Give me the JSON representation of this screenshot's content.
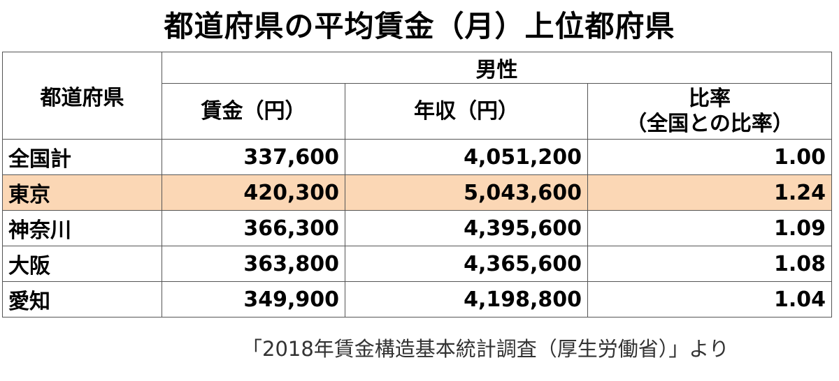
{
  "title": "都道府県の平均賃金（月）上位都府県",
  "table": {
    "header_pref": "都道府県",
    "header_group": "男性",
    "header_wage": "賃金（円）",
    "header_income": "年収（円）",
    "header_ratio_line1": "比率",
    "header_ratio_line2": "（全国との比率）",
    "highlight_color": "#fbd7b5",
    "rows": [
      {
        "name": "全国計",
        "wage": "337,600",
        "income": "4,051,200",
        "ratio": "1.00"
      },
      {
        "name": "東京",
        "wage": "420,300",
        "income": "5,043,600",
        "ratio": "1.24"
      },
      {
        "name": "神奈川",
        "wage": "366,300",
        "income": "4,395,600",
        "ratio": "1.09"
      },
      {
        "name": "大阪",
        "wage": "363,800",
        "income": "4,365,600",
        "ratio": "1.08"
      },
      {
        "name": "愛知",
        "wage": "349,900",
        "income": "4,198,800",
        "ratio": "1.04"
      }
    ]
  },
  "source": "「2018年賃金構造基本統計調査（厚生労働省）」より"
}
